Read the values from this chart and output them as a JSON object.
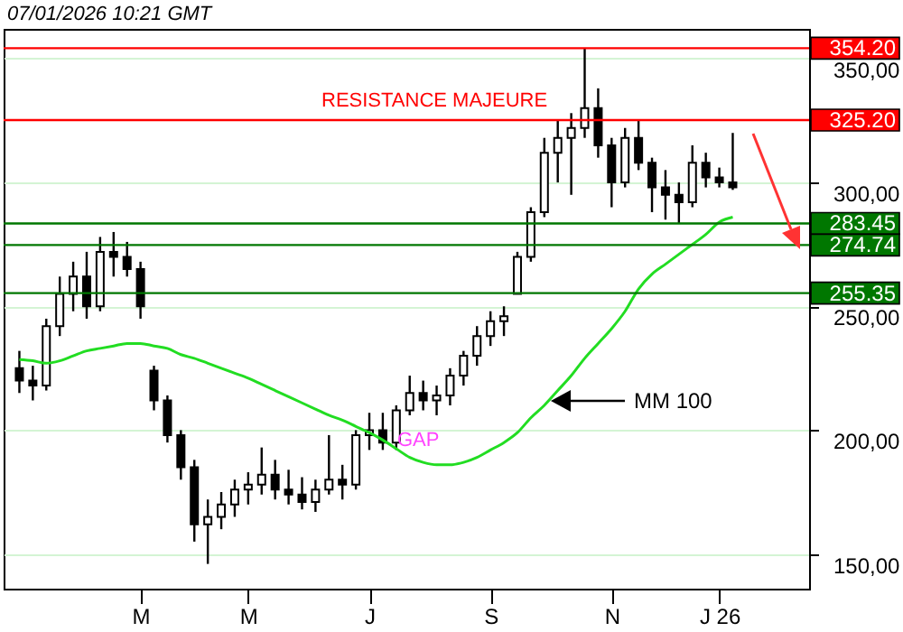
{
  "chart_data": {
    "type": "candlestick",
    "title": "07/01/2026  10:21 GMT",
    "categories": [
      null,
      null,
      null,
      null,
      null,
      null,
      null,
      null,
      null,
      "M",
      null,
      null,
      null,
      null,
      null,
      null,
      null,
      "M",
      null,
      null,
      null,
      null,
      null,
      null,
      null,
      null,
      "J",
      null,
      null,
      null,
      null,
      null,
      null,
      null,
      null,
      "S",
      null,
      null,
      null,
      null,
      null,
      null,
      null,
      null,
      "N",
      null,
      null,
      null,
      null,
      null,
      null,
      null,
      "J 26",
      null
    ],
    "ohlc": [
      [
        225,
        232,
        215,
        220
      ],
      [
        220,
        226,
        212,
        218
      ],
      [
        218,
        245,
        216,
        242
      ],
      [
        242,
        262,
        238,
        255
      ],
      [
        255,
        268,
        248,
        262
      ],
      [
        262,
        272,
        245,
        250
      ],
      [
        250,
        278,
        248,
        272
      ],
      [
        272,
        280,
        262,
        270
      ],
      [
        270,
        276,
        262,
        265
      ],
      [
        265,
        268,
        245,
        250
      ],
      [
        224,
        226,
        208,
        212
      ],
      [
        212,
        214,
        195,
        198
      ],
      [
        198,
        200,
        180,
        185
      ],
      [
        185,
        188,
        155,
        162
      ],
      [
        162,
        172,
        146,
        165
      ],
      [
        165,
        175,
        160,
        170
      ],
      [
        170,
        180,
        165,
        176
      ],
      [
        176,
        183,
        170,
        178
      ],
      [
        178,
        193,
        174,
        182
      ],
      [
        182,
        188,
        172,
        176
      ],
      [
        176,
        184,
        170,
        174
      ],
      [
        174,
        181,
        168,
        171
      ],
      [
        171,
        180,
        167,
        176
      ],
      [
        176,
        198,
        174,
        180
      ],
      [
        180,
        186,
        172,
        178
      ],
      [
        178,
        200,
        176,
        198
      ],
      [
        198,
        207,
        192,
        200
      ],
      [
        200,
        207,
        192,
        195
      ],
      [
        195,
        210,
        192,
        208
      ],
      [
        208,
        222,
        206,
        215
      ],
      [
        215,
        220,
        208,
        212
      ],
      [
        212,
        218,
        206,
        214
      ],
      [
        214,
        225,
        210,
        222
      ],
      [
        222,
        232,
        218,
        230
      ],
      [
        230,
        242,
        226,
        238
      ],
      [
        238,
        248,
        234,
        244
      ],
      [
        244,
        250,
        238,
        246
      ],
      [
        255,
        272,
        255,
        270
      ],
      [
        270,
        290,
        268,
        288
      ],
      [
        288,
        318,
        286,
        312
      ],
      [
        312,
        325,
        300,
        318
      ],
      [
        318,
        328,
        295,
        322
      ],
      [
        322,
        354.2,
        318,
        330
      ],
      [
        330,
        338,
        310,
        315
      ],
      [
        315,
        318,
        290,
        300
      ],
      [
        300,
        322,
        298,
        318
      ],
      [
        318,
        325,
        305,
        308
      ],
      [
        308,
        310,
        288,
        298
      ],
      [
        298,
        305,
        285,
        295
      ],
      [
        295,
        300,
        283.45,
        292
      ],
      [
        292,
        315,
        290,
        308
      ],
      [
        308,
        312,
        298,
        302
      ],
      [
        302,
        306,
        298,
        300
      ],
      [
        300,
        320,
        297,
        298
      ]
    ],
    "series": [
      {
        "name": "MM 100",
        "type": "line",
        "color": "#22dd22",
        "values": [
          228.5,
          228,
          227,
          228,
          230,
          232,
          233,
          234,
          235,
          235,
          234,
          233,
          230.5,
          229,
          227,
          225,
          223,
          221,
          218.5,
          216,
          213.5,
          211,
          208.5,
          206,
          204,
          201.5,
          199,
          196,
          192.5,
          189,
          187,
          186,
          186,
          187,
          189,
          192,
          195,
          199,
          205,
          210,
          216,
          222,
          229,
          235,
          241,
          248,
          257,
          263,
          267,
          271,
          275,
          279,
          284,
          286
        ]
      }
    ],
    "ylim": [
      136,
      362
    ],
    "yticks": [
      {
        "value": 150,
        "label": "150,00"
      },
      {
        "value": 200,
        "label": "200,00"
      },
      {
        "value": 250,
        "label": "250,00"
      },
      {
        "value": 300,
        "label": "300,00"
      },
      {
        "value": 350,
        "label": "350,00"
      }
    ],
    "grid": "y",
    "ref_lines": [
      {
        "axis": "y",
        "value": 354.2,
        "label": "354.20",
        "color": "#ff0000"
      },
      {
        "axis": "y",
        "value": 325.2,
        "label": "325.20",
        "color": "#ff0000"
      },
      {
        "axis": "y",
        "value": 283.45,
        "label": "283.45",
        "color": "#007700"
      },
      {
        "axis": "y",
        "value": 274.74,
        "label": "274.74",
        "color": "#007700"
      },
      {
        "axis": "y",
        "value": 255.35,
        "label": "255.35",
        "color": "#007700"
      }
    ],
    "annotations": [
      "RESISTANCE MAJEURE",
      "GAP"
    ]
  }
}
